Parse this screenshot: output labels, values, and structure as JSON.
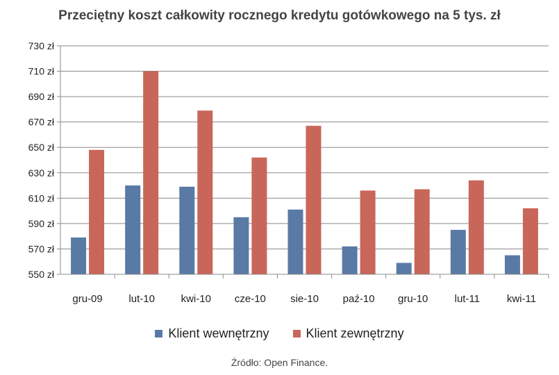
{
  "chart_data": {
    "type": "bar",
    "title": "Przeciętny koszt całkowity rocznego kredytu gotówkowego na 5 tys. zł",
    "categories": [
      "gru-09",
      "lut-10",
      "kwi-10",
      "cze-10",
      "sie-10",
      "paź-10",
      "gru-10",
      "lut-11",
      "kwi-11"
    ],
    "series": [
      {
        "name": "Klient wewnętrzny",
        "color": "#5a7aa6",
        "values": [
          579,
          620,
          619,
          595,
          601,
          572,
          559,
          585,
          565
        ]
      },
      {
        "name": "Klient zewnętrzny",
        "color": "#c9665a",
        "values": [
          648,
          710,
          679,
          642,
          667,
          616,
          617,
          624,
          602
        ]
      }
    ],
    "ylim": [
      550,
      730
    ],
    "y_ticks": [
      "550 zł",
      "570 zł",
      "590 zł",
      "610 zł",
      "630 zł",
      "650 zł",
      "670 zł",
      "690 zł",
      "710 zł",
      "730 zł"
    ],
    "xlabel": "",
    "ylabel": "",
    "grid": true,
    "legend_position": "bottom"
  },
  "source": "Źródło: Open Finance."
}
